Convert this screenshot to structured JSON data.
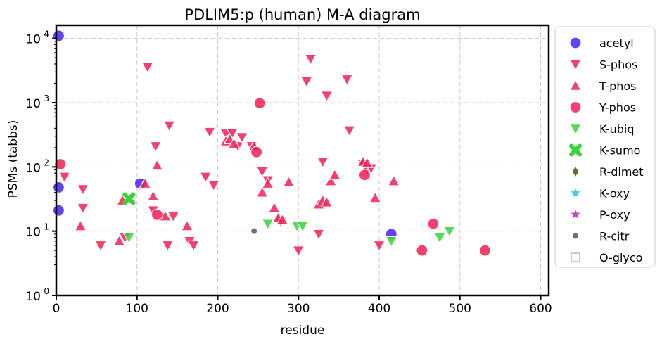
{
  "chart_data": {
    "type": "scatter",
    "title": "PDLIM5:p (human) M-A diagram",
    "xlabel": "residue",
    "ylabel": "PSMs (tabbs)",
    "xlim": [
      0,
      610
    ],
    "ylim": [
      1,
      16000
    ],
    "yscale": "log",
    "grid": true,
    "legend_position": "right",
    "x_ticks": [
      "0",
      "100",
      "200",
      "300",
      "400",
      "500",
      "600"
    ],
    "y_ticks": [
      {
        "base": "10",
        "exp": "0"
      },
      {
        "base": "10",
        "exp": "1"
      },
      {
        "base": "10",
        "exp": "2"
      },
      {
        "base": "10",
        "exp": "3"
      },
      {
        "base": "10",
        "exp": "4"
      }
    ],
    "series": [
      {
        "name": "acetyl",
        "marker": "circle",
        "color": "#4b1ff2",
        "points": [
          [
            3,
            11000
          ],
          [
            3,
            48
          ],
          [
            3,
            21
          ],
          [
            104,
            55
          ],
          [
            415,
            9
          ]
        ]
      },
      {
        "name": "S-phos",
        "marker": "triangle-down",
        "color": "#f21f55",
        "points": [
          [
            10,
            70
          ],
          [
            33,
            45
          ],
          [
            33,
            23
          ],
          [
            55,
            6
          ],
          [
            85,
            8
          ],
          [
            113,
            3600
          ],
          [
            120,
            21
          ],
          [
            123,
            210
          ],
          [
            138,
            6
          ],
          [
            140,
            440
          ],
          [
            145,
            17
          ],
          [
            165,
            7
          ],
          [
            170,
            6
          ],
          [
            185,
            70
          ],
          [
            190,
            350
          ],
          [
            195,
            52
          ],
          [
            210,
            330
          ],
          [
            218,
            340
          ],
          [
            225,
            210
          ],
          [
            230,
            290
          ],
          [
            242,
            210
          ],
          [
            255,
            85
          ],
          [
            262,
            62
          ],
          [
            278,
            14
          ],
          [
            300,
            5
          ],
          [
            310,
            2150
          ],
          [
            315,
            4800
          ],
          [
            325,
            9
          ],
          [
            330,
            120
          ],
          [
            335,
            1280
          ],
          [
            360,
            2300
          ],
          [
            363,
            370
          ],
          [
            380,
            110
          ],
          [
            385,
            90
          ],
          [
            390,
            95
          ],
          [
            400,
            6
          ]
        ]
      },
      {
        "name": "T-phos",
        "marker": "triangle-up",
        "color": "#f21f55",
        "points": [
          [
            30,
            12
          ],
          [
            78,
            7
          ],
          [
            82,
            30
          ],
          [
            110,
            55
          ],
          [
            120,
            35
          ],
          [
            125,
            105
          ],
          [
            135,
            17
          ],
          [
            162,
            12
          ],
          [
            210,
            250
          ],
          [
            215,
            270
          ],
          [
            220,
            230
          ],
          [
            245,
            210
          ],
          [
            255,
            40
          ],
          [
            262,
            55
          ],
          [
            270,
            23
          ],
          [
            275,
            16
          ],
          [
            280,
            15
          ],
          [
            288,
            58
          ],
          [
            325,
            26
          ],
          [
            330,
            30
          ],
          [
            335,
            28
          ],
          [
            340,
            60
          ],
          [
            345,
            75
          ],
          [
            380,
            120
          ],
          [
            385,
            115
          ],
          [
            395,
            33
          ],
          [
            418,
            60
          ]
        ]
      },
      {
        "name": "Y-phos",
        "marker": "circle",
        "color": "#f21f55",
        "points": [
          [
            5,
            110
          ],
          [
            125,
            18
          ],
          [
            248,
            170
          ],
          [
            252,
            980
          ],
          [
            382,
            75
          ],
          [
            453,
            5
          ],
          [
            467,
            13
          ],
          [
            531,
            5
          ]
        ]
      },
      {
        "name": "K-ubiq",
        "marker": "triangle-down",
        "color": "#3ad33a",
        "points": [
          [
            90,
            8
          ],
          [
            262,
            13
          ],
          [
            298,
            12
          ],
          [
            305,
            12
          ],
          [
            415,
            7
          ],
          [
            475,
            8
          ],
          [
            487,
            10
          ]
        ]
      },
      {
        "name": "K-sumo",
        "marker": "x",
        "color": "#3ad33a",
        "points": [
          [
            90,
            32
          ]
        ]
      },
      {
        "name": "R-dimet",
        "marker": "diamond",
        "color": "#6b6b2b",
        "points": []
      },
      {
        "name": "K-oxy",
        "marker": "star",
        "color": "#3fcfdf",
        "points": []
      },
      {
        "name": "P-oxy",
        "marker": "star",
        "color": "#cf3fdf",
        "points": []
      },
      {
        "name": "R-citr",
        "marker": "dot",
        "color": "#707070",
        "points": [
          [
            245,
            10
          ]
        ]
      },
      {
        "name": "O-glyco",
        "marker": "square-open",
        "color": "#aaaaaa",
        "points": []
      }
    ]
  }
}
